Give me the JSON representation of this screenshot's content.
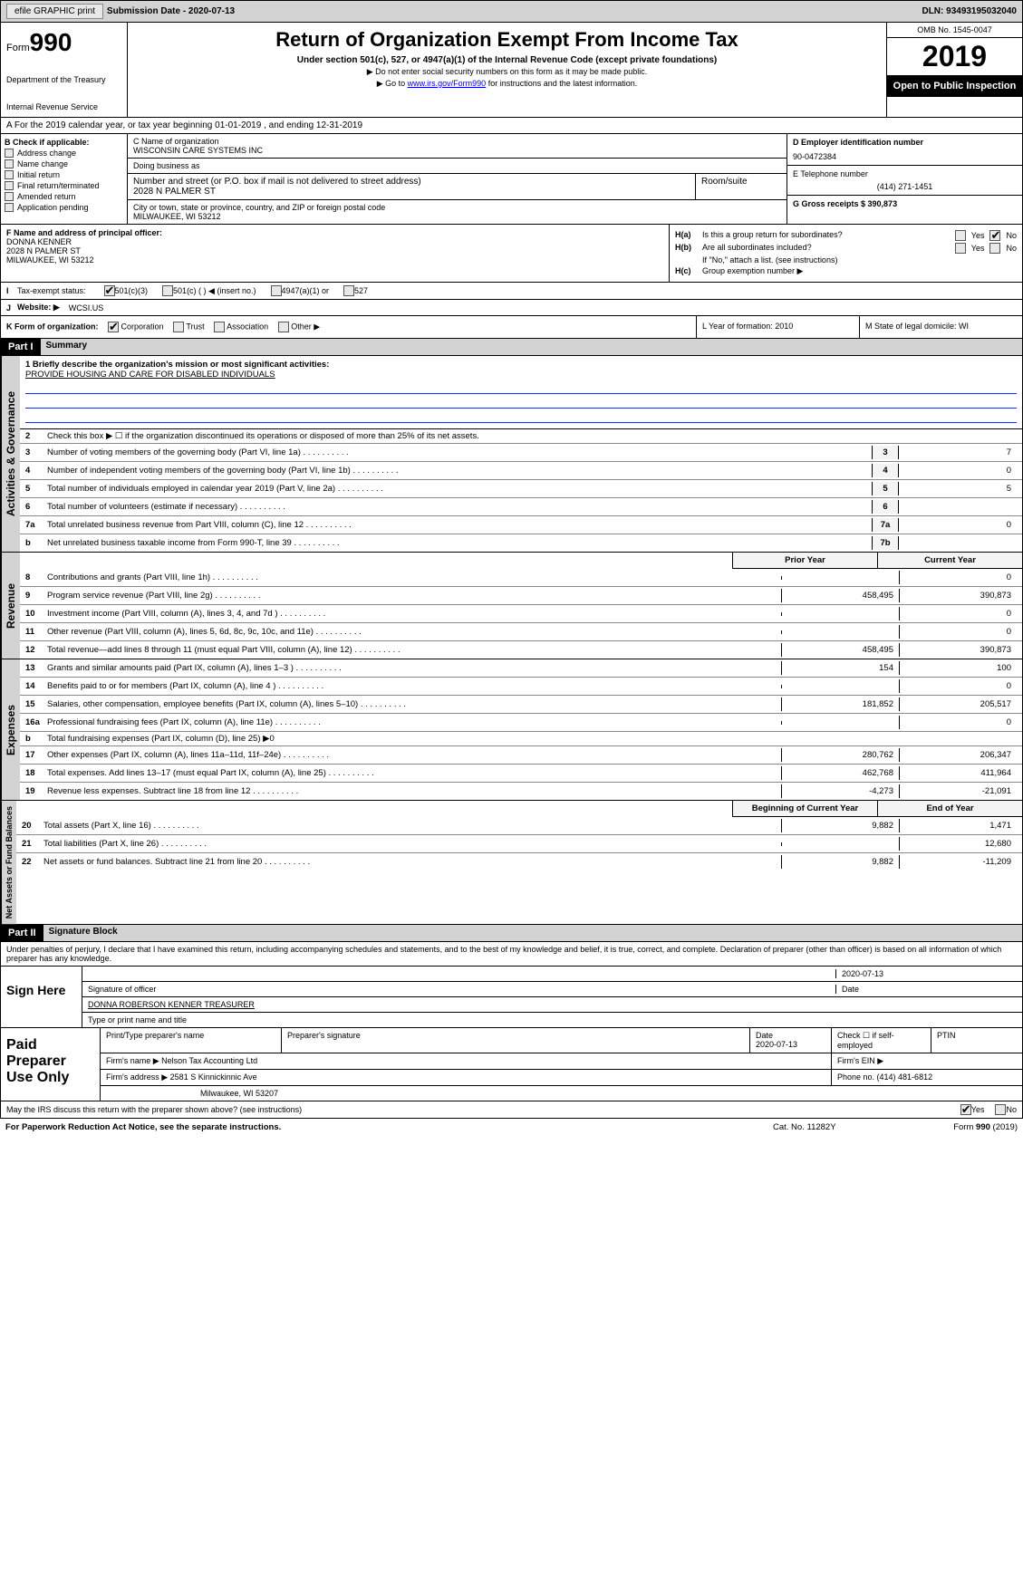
{
  "top_bar": {
    "efile_label": "efile GRAPHIC print",
    "submission_label": "Submission Date - 2020-07-13",
    "dln_label": "DLN: 93493195032040"
  },
  "header": {
    "form_label": "Form",
    "form_number": "990",
    "dept": "Department of the Treasury",
    "irs": "Internal Revenue Service",
    "title": "Return of Organization Exempt From Income Tax",
    "subtitle": "Under section 501(c), 527, or 4947(a)(1) of the Internal Revenue Code (except private foundations)",
    "note1": "▶ Do not enter social security numbers on this form as it may be made public.",
    "note2_pre": "▶ Go to ",
    "note2_link": "www.irs.gov/Form990",
    "note2_post": " for instructions and the latest information.",
    "omb": "OMB No. 1545-0047",
    "year": "2019",
    "open": "Open to Public Inspection"
  },
  "section_a": "A  For the 2019 calendar year, or tax year beginning 01-01-2019     , and ending 12-31-2019",
  "section_b": {
    "label": "B Check if applicable:",
    "items": [
      "Address change",
      "Name change",
      "Initial return",
      "Final return/terminated",
      "Amended return",
      "Application pending"
    ]
  },
  "section_c": {
    "name_label": "C Name of organization",
    "name": "WISCONSIN CARE SYSTEMS INC",
    "dba_label": "Doing business as",
    "dba": "",
    "street_label": "Number and street (or P.O. box if mail is not delivered to street address)",
    "street": "2028 N PALMER ST",
    "room_label": "Room/suite",
    "city_label": "City or town, state or province, country, and ZIP or foreign postal code",
    "city": "MILWAUKEE, WI  53212"
  },
  "section_d": {
    "ein_label": "D Employer identification number",
    "ein": "90-0472384",
    "phone_label": "E Telephone number",
    "phone": "(414) 271-1451",
    "gross_label": "G Gross receipts $ 390,873"
  },
  "section_f": {
    "label": "F Name and address of principal officer:",
    "name": "DONNA KENNER",
    "addr1": "2028 N PALMER ST",
    "addr2": "MILWAUKEE, WI  53212"
  },
  "section_h": {
    "a_label": "H(a)",
    "a_text": "Is this a group return for subordinates?",
    "b_label": "H(b)",
    "b_text": "Are all subordinates included?",
    "b_note": "If \"No,\" attach a list. (see instructions)",
    "c_label": "H(c)",
    "c_text": "Group exemption number ▶"
  },
  "row_i": {
    "label": "I",
    "text": "Tax-exempt status:",
    "opts": [
      "501(c)(3)",
      "501(c) (  ) ◀ (insert no.)",
      "4947(a)(1) or",
      "527"
    ]
  },
  "row_j": {
    "label": "J",
    "text": "Website: ▶",
    "val": "WCSI.US"
  },
  "row_k": {
    "label": "K Form of organization:",
    "opts": [
      "Corporation",
      "Trust",
      "Association",
      "Other ▶"
    ]
  },
  "row_l": {
    "year": "L Year of formation: 2010",
    "state": "M State of legal domicile: WI"
  },
  "part1": {
    "hdr": "Part I",
    "title": "Summary"
  },
  "governance": {
    "tab": "Activities & Governance",
    "l1_label": "1  Briefly describe the organization's mission or most significant activities:",
    "l1_text": "PROVIDE HOUSING AND CARE FOR DISABLED INDIVIDUALS",
    "l2": "Check this box ▶ ☐ if the organization discontinued its operations or disposed of more than 25% of its net assets.",
    "lines": [
      {
        "n": "3",
        "t": "Number of voting members of the governing body (Part VI, line 1a)",
        "c": "3",
        "v": "7"
      },
      {
        "n": "4",
        "t": "Number of independent voting members of the governing body (Part VI, line 1b)",
        "c": "4",
        "v": "0"
      },
      {
        "n": "5",
        "t": "Total number of individuals employed in calendar year 2019 (Part V, line 2a)",
        "c": "5",
        "v": "5"
      },
      {
        "n": "6",
        "t": "Total number of volunteers (estimate if necessary)",
        "c": "6",
        "v": ""
      },
      {
        "n": "7a",
        "t": "Total unrelated business revenue from Part VIII, column (C), line 12",
        "c": "7a",
        "v": "0"
      },
      {
        "n": "b",
        "t": "Net unrelated business taxable income from Form 990-T, line 39",
        "c": "7b",
        "v": ""
      }
    ]
  },
  "revenue": {
    "tab": "Revenue",
    "hdr_prior": "Prior Year",
    "hdr_current": "Current Year",
    "lines": [
      {
        "n": "8",
        "t": "Contributions and grants (Part VIII, line 1h)",
        "p": "",
        "c": "0"
      },
      {
        "n": "9",
        "t": "Program service revenue (Part VIII, line 2g)",
        "p": "458,495",
        "c": "390,873"
      },
      {
        "n": "10",
        "t": "Investment income (Part VIII, column (A), lines 3, 4, and 7d )",
        "p": "",
        "c": "0"
      },
      {
        "n": "11",
        "t": "Other revenue (Part VIII, column (A), lines 5, 6d, 8c, 9c, 10c, and 11e)",
        "p": "",
        "c": "0"
      },
      {
        "n": "12",
        "t": "Total revenue—add lines 8 through 11 (must equal Part VIII, column (A), line 12)",
        "p": "458,495",
        "c": "390,873"
      }
    ]
  },
  "expenses": {
    "tab": "Expenses",
    "lines": [
      {
        "n": "13",
        "t": "Grants and similar amounts paid (Part IX, column (A), lines 1–3 )",
        "p": "154",
        "c": "100"
      },
      {
        "n": "14",
        "t": "Benefits paid to or for members (Part IX, column (A), line 4 )",
        "p": "",
        "c": "0"
      },
      {
        "n": "15",
        "t": "Salaries, other compensation, employee benefits (Part IX, column (A), lines 5–10)",
        "p": "181,852",
        "c": "205,517"
      },
      {
        "n": "16a",
        "t": "Professional fundraising fees (Part IX, column (A), line 11e)",
        "p": "",
        "c": "0"
      },
      {
        "n": "b",
        "t": "Total fundraising expenses (Part IX, column (D), line 25) ▶0",
        "p": null,
        "c": null
      },
      {
        "n": "17",
        "t": "Other expenses (Part IX, column (A), lines 11a–11d, 11f–24e)",
        "p": "280,762",
        "c": "206,347"
      },
      {
        "n": "18",
        "t": "Total expenses. Add lines 13–17 (must equal Part IX, column (A), line 25)",
        "p": "462,768",
        "c": "411,964"
      },
      {
        "n": "19",
        "t": "Revenue less expenses. Subtract line 18 from line 12",
        "p": "-4,273",
        "c": "-21,091"
      }
    ]
  },
  "netassets": {
    "tab": "Net Assets or Fund Balances",
    "hdr_begin": "Beginning of Current Year",
    "hdr_end": "End of Year",
    "lines": [
      {
        "n": "20",
        "t": "Total assets (Part X, line 16)",
        "p": "9,882",
        "c": "1,471"
      },
      {
        "n": "21",
        "t": "Total liabilities (Part X, line 26)",
        "p": "",
        "c": "12,680"
      },
      {
        "n": "22",
        "t": "Net assets or fund balances. Subtract line 21 from line 20",
        "p": "9,882",
        "c": "-11,209"
      }
    ]
  },
  "part2": {
    "hdr": "Part II",
    "title": "Signature Block"
  },
  "perjury": "Under penalties of perjury, I declare that I have examined this return, including accompanying schedules and statements, and to the best of my knowledge and belief, it is true, correct, and complete. Declaration of preparer (other than officer) is based on all information of which preparer has any knowledge.",
  "sign": {
    "label": "Sign Here",
    "sig_label": "Signature of officer",
    "date": "2020-07-13",
    "date_label": "Date",
    "name": "DONNA ROBERSON KENNER  TREASURER",
    "name_label": "Type or print name and title"
  },
  "preparer": {
    "label": "Paid Preparer Use Only",
    "col_name": "Print/Type preparer's name",
    "col_sig": "Preparer's signature",
    "col_date": "Date",
    "date_val": "2020-07-13",
    "col_check": "Check ☐ if self-employed",
    "col_ptin": "PTIN",
    "firm_name_label": "Firm's name   ▶",
    "firm_name": "Nelson Tax Accounting Ltd",
    "firm_ein_label": "Firm's EIN ▶",
    "firm_addr_label": "Firm's address ▶",
    "firm_addr": "2581 S Kinnickinnic Ave",
    "firm_addr2": "Milwaukee, WI  53207",
    "firm_phone_label": "Phone no. (414) 481-6812"
  },
  "discuss": "May the IRS discuss this return with the preparer shown above? (see instructions)",
  "footer": {
    "left": "For Paperwork Reduction Act Notice, see the separate instructions.",
    "center": "Cat. No. 11282Y",
    "right": "Form 990 (2019)"
  },
  "yes": "Yes",
  "no": "No"
}
